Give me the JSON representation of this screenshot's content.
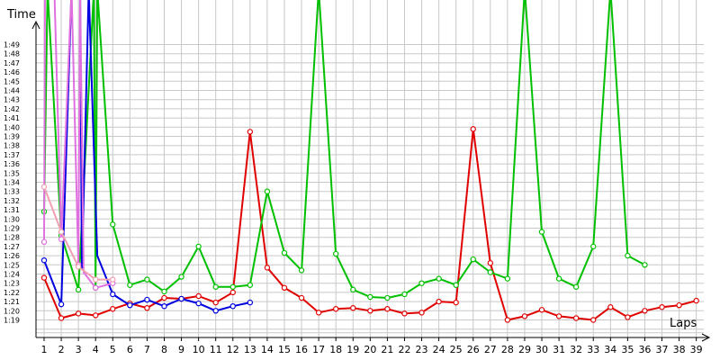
{
  "chart_data": {
    "type": "line",
    "xlabel": "Laps",
    "ylabel": "Time",
    "x_ticks": [
      "1",
      "2",
      "3",
      "4",
      "5",
      "6",
      "7",
      "8",
      "9",
      "10",
      "11",
      "12",
      "13",
      "14",
      "15",
      "16",
      "17",
      "18",
      "19",
      "20",
      "21",
      "22",
      "23",
      "24",
      "25",
      "26",
      "27",
      "28",
      "29",
      "30",
      "31",
      "32",
      "33",
      "34",
      "35",
      "36",
      "37",
      "38",
      "39"
    ],
    "y_ticks": [
      "1:19",
      "1:20",
      "1:21",
      "1:22",
      "1:23",
      "1:24",
      "1:25",
      "1:26",
      "1:27",
      "1:28",
      "1:29",
      "1:30",
      "1:31",
      "1:32",
      "1:33",
      "1:34",
      "1:35",
      "1:36",
      "1:37",
      "1:38",
      "1:39",
      "1:40",
      "1:41",
      "1:42",
      "1:43",
      "1:44",
      "1:45",
      "1:46",
      "1:47",
      "1:48",
      "1:49"
    ],
    "ylim_seconds": [
      78.0,
      113.0
    ],
    "grid": true,
    "series": [
      {
        "color": "#e00000",
        "points": [
          [
            1,
            83.6
          ],
          [
            2,
            79.2
          ],
          [
            3,
            79.7
          ],
          [
            4,
            79.5
          ],
          [
            5,
            80.2
          ],
          [
            6,
            80.8
          ],
          [
            7,
            80.3
          ],
          [
            8,
            81.4
          ],
          [
            9,
            81.3
          ],
          [
            10,
            81.6
          ],
          [
            11,
            80.9
          ],
          [
            12,
            82.0
          ],
          [
            13,
            99.5
          ],
          [
            14,
            84.7
          ],
          [
            15,
            82.5
          ],
          [
            16,
            81.4
          ],
          [
            17,
            79.8
          ],
          [
            18,
            80.2
          ],
          [
            19,
            80.3
          ],
          [
            20,
            80.0
          ],
          [
            21,
            80.2
          ],
          [
            22,
            79.7
          ],
          [
            23,
            79.8
          ],
          [
            24,
            81.0
          ],
          [
            25,
            80.9
          ],
          [
            26,
            99.8
          ],
          [
            27,
            85.2
          ],
          [
            28,
            79.0
          ],
          [
            29,
            79.4
          ],
          [
            30,
            80.1
          ],
          [
            31,
            79.4
          ],
          [
            32,
            79.2
          ],
          [
            33,
            79.0
          ],
          [
            34,
            80.4
          ],
          [
            35,
            79.3
          ],
          [
            36,
            80.0
          ],
          [
            37,
            80.4
          ],
          [
            38,
            80.6
          ],
          [
            39,
            81.1
          ]
        ]
      },
      {
        "color": "#00c000",
        "points": [
          [
            1,
            90.8
          ],
          [
            1.2,
            115
          ],
          [
            2,
            88.2
          ],
          [
            3,
            82.3
          ],
          [
            3.9,
            115
          ],
          [
            4,
            82.5
          ],
          [
            4.1,
            115
          ],
          [
            5,
            89.4
          ],
          [
            6,
            82.8
          ],
          [
            7,
            83.4
          ],
          [
            8,
            82.1
          ],
          [
            9,
            83.7
          ],
          [
            10,
            87.0
          ],
          [
            11,
            82.6
          ],
          [
            12,
            82.6
          ],
          [
            13,
            82.8
          ],
          [
            14,
            93.0
          ],
          [
            15,
            86.3
          ],
          [
            16,
            84.4
          ],
          [
            17,
            115
          ],
          [
            18,
            86.2
          ],
          [
            19,
            82.3
          ],
          [
            20,
            81.5
          ],
          [
            21,
            81.4
          ],
          [
            22,
            81.8
          ],
          [
            23,
            83.0
          ],
          [
            24,
            83.5
          ],
          [
            25,
            82.8
          ],
          [
            26,
            85.6
          ],
          [
            27,
            84.2
          ],
          [
            28,
            83.5
          ],
          [
            29,
            115
          ],
          [
            30,
            88.6
          ],
          [
            31,
            83.5
          ],
          [
            32,
            82.6
          ],
          [
            33,
            87.0
          ],
          [
            34,
            115
          ],
          [
            35,
            86.0
          ],
          [
            36,
            85.0
          ]
        ]
      },
      {
        "color": "#0000e0",
        "points": [
          [
            1,
            85.5
          ],
          [
            2,
            80.7
          ],
          [
            2.6,
            115
          ],
          [
            3.1,
            115
          ],
          [
            3.2,
            84.6
          ],
          [
            3.6,
            115
          ],
          [
            4.1,
            86.0
          ],
          [
            5,
            81.8
          ],
          [
            6,
            80.6
          ],
          [
            7,
            81.2
          ],
          [
            8,
            80.5
          ],
          [
            9,
            81.3
          ],
          [
            10,
            80.8
          ],
          [
            11,
            80.0
          ],
          [
            12,
            80.5
          ],
          [
            13,
            80.9
          ]
        ]
      },
      {
        "color": "#e070e0",
        "points": [
          [
            1,
            87.5
          ],
          [
            1.05,
            115
          ],
          [
            1.6,
            115
          ],
          [
            2,
            87.8
          ],
          [
            2.6,
            115
          ],
          [
            3.0,
            85.0
          ],
          [
            3.1,
            115
          ],
          [
            3.3,
            84.2
          ],
          [
            4,
            82.5
          ],
          [
            5,
            83.0
          ]
        ]
      },
      {
        "color": "#f0a0b0",
        "points": [
          [
            1,
            93.5
          ],
          [
            2,
            88.6
          ],
          [
            3,
            84.8
          ],
          [
            4,
            83.4
          ],
          [
            5,
            83.4
          ]
        ]
      }
    ]
  }
}
